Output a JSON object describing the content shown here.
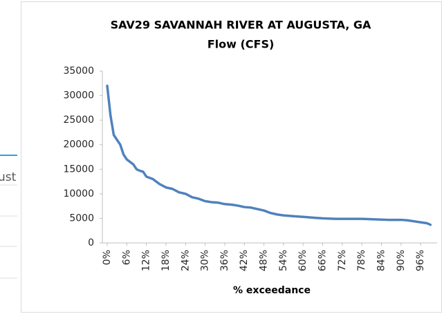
{
  "background": {
    "text": "ust"
  },
  "chart_data": {
    "type": "line",
    "title": "SAV29 SAVANNAH RIVER AT AUGUSTA, GA",
    "subtitle": "Flow (CFS)",
    "x_label": "% exceedance",
    "color": "#4f81bd",
    "x": [
      0,
      1,
      2,
      3,
      4,
      5,
      6,
      7,
      8,
      9,
      10,
      11,
      12,
      14,
      16,
      18,
      20,
      22,
      24,
      26,
      28,
      30,
      32,
      34,
      36,
      38,
      40,
      42,
      44,
      46,
      48,
      50,
      52,
      54,
      56,
      58,
      60,
      62,
      64,
      66,
      70,
      74,
      78,
      82,
      86,
      90,
      92,
      94,
      96,
      98,
      99
    ],
    "values": [
      32000,
      26000,
      22000,
      21000,
      20000,
      18000,
      17000,
      16500,
      16000,
      15000,
      14700,
      14500,
      13500,
      13000,
      12000,
      11300,
      11000,
      10300,
      10000,
      9300,
      9000,
      8500,
      8300,
      8200,
      7900,
      7800,
      7600,
      7300,
      7200,
      6900,
      6600,
      6100,
      5800,
      5600,
      5500,
      5400,
      5300,
      5200,
      5100,
      5000,
      4900,
      4900,
      4900,
      4800,
      4700,
      4700,
      4600,
      4400,
      4200,
      4000,
      3700
    ],
    "xlim": [
      0,
      100
    ],
    "xticks": [
      {
        "value": 0,
        "label": "0%"
      },
      {
        "value": 6,
        "label": "6%"
      },
      {
        "value": 12,
        "label": "12%"
      },
      {
        "value": 18,
        "label": "18%"
      },
      {
        "value": 24,
        "label": "24%"
      },
      {
        "value": 30,
        "label": "30%"
      },
      {
        "value": 36,
        "label": "36%"
      },
      {
        "value": 42,
        "label": "42%"
      },
      {
        "value": 48,
        "label": "48%"
      },
      {
        "value": 54,
        "label": "54%"
      },
      {
        "value": 60,
        "label": "60%"
      },
      {
        "value": 66,
        "label": "66%"
      },
      {
        "value": 72,
        "label": "72%"
      },
      {
        "value": 78,
        "label": "78%"
      },
      {
        "value": 84,
        "label": "84%"
      },
      {
        "value": 90,
        "label": "90%"
      },
      {
        "value": 96,
        "label": "96%"
      }
    ],
    "ylim": [
      0,
      35000
    ],
    "yticks": [
      0,
      5000,
      10000,
      15000,
      20000,
      25000,
      30000,
      35000
    ],
    "grid": false
  }
}
